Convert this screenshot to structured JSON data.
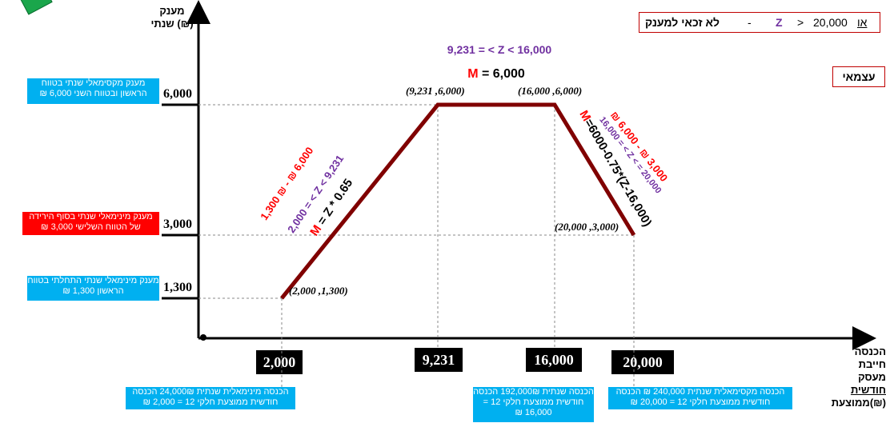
{
  "chart_data": {
    "type": "line",
    "points": [
      {
        "x": 2000,
        "y": 1300,
        "label": "(2,000 ,1,300)"
      },
      {
        "x": 9231,
        "y": 6000,
        "label": "(9,231 ,6,000)"
      },
      {
        "x": 16000,
        "y": 6000,
        "label": "(16,000 ,6,000)"
      },
      {
        "x": 20000,
        "y": 3000,
        "label": "(20,000 ,3,000)"
      }
    ],
    "y_ticks": [
      "6,000",
      "3,000",
      "1,300"
    ],
    "x_ticks": [
      "2,000",
      "9,231",
      "16,000",
      "20,000"
    ],
    "ylabel_line1": "מענק",
    "ylabel_line2": "שנתי (₪)",
    "xlabel_line1": "הכנסה חייבת",
    "xlabel_line2_a": "מעסק ",
    "xlabel_line2_b": "חודשית",
    "xlabel_line3": "ממוצעת(₪)",
    "line_color": "#800000"
  },
  "rule_box": {
    "or": "או",
    "value": "20,000",
    "gt": ">",
    "z": "Z",
    "dash": "-",
    "text": "לא זכאי למענק"
  },
  "self_employed_box": "עצמאי",
  "segments": {
    "middle_range": "9,231 = < Z < 16,000",
    "middle_formula_m": "M",
    "middle_formula_rest": " = 6,000",
    "left_range_amount": "1,300 ₪ - ₪ 6,000",
    "left_range_z": "2,000 = < Z < 9,231",
    "left_formula_m": "M",
    "left_formula_rest": " =  Z  *  0.65",
    "right_range_amount": "₪ 6,000 - ₪ 3,000",
    "right_range_z": "16,000 = < Z < = 20,000",
    "right_formula_m": "M",
    "right_formula_rest": "=6000-0.75*(Z-16,000)"
  },
  "y_boxes": {
    "max": "מענק מקסימאלי שנתי בטווח הראשון ובטווח השני 6,000 ₪",
    "min_end": "מענק מינימאלי שנתי בסוף הירידה של הטווח השלישי 3,000 ₪",
    "min_start": "מענק מינימאלי שנתי התחלתי בטווח הראשון 1,300 ₪"
  },
  "x_boxes": {
    "min": "הכנסה מינימאלית שנתית 24,000₪ הכנסה חודשית ממוצעת חלקי 12 = 2,000 ₪",
    "mid": "הכנסה שנתית 192,000₪ הכנסה חודשית ממוצעת חלקי 12 = 16,000 ₪",
    "max": "הכנסה מקסימאלית שנתית 240,000 ₪ הכנסה חודשית ממוצעת חלקי 12 = 20,000 ₪"
  },
  "colors": {
    "line": "#800000",
    "red": "#ff0000",
    "purple": "#7030a0",
    "cyan_box": "#00b0f0",
    "red_box": "#ff0000"
  }
}
